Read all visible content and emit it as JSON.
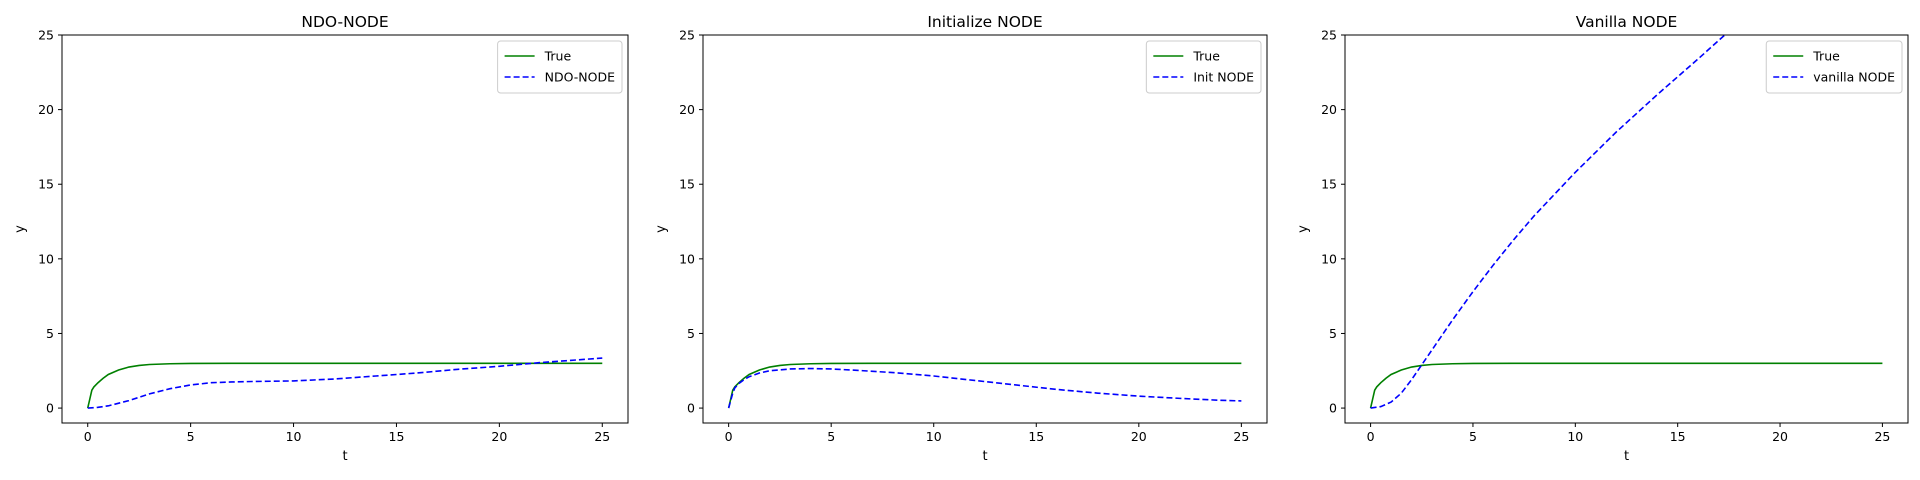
{
  "chart_data": [
    {
      "type": "line",
      "title": "NDO-NODE",
      "xlabel": "t",
      "ylabel": "y",
      "xlim": [
        -1.25,
        26.25
      ],
      "ylim": [
        -1,
        25
      ],
      "xticks": [
        0,
        5,
        10,
        15,
        20,
        25
      ],
      "yticks": [
        0,
        5,
        10,
        15,
        20,
        25
      ],
      "grid": false,
      "legend_position": "top-right",
      "series": [
        {
          "name": "True",
          "color": "#008000",
          "style": "solid",
          "x": [
            0,
            0.1,
            0.2,
            0.3,
            0.5,
            0.75,
            1,
            1.5,
            2,
            2.5,
            3,
            4,
            5,
            7,
            10,
            15,
            20,
            25
          ],
          "y": [
            0,
            0.6,
            1.2,
            1.42,
            1.7,
            2.0,
            2.25,
            2.55,
            2.75,
            2.86,
            2.92,
            2.97,
            2.99,
            3.0,
            3.0,
            3.0,
            3.0,
            3.0
          ]
        },
        {
          "name": "NDO-NODE",
          "color": "#0000ff",
          "style": "dashed",
          "x": [
            0,
            0.5,
            1,
            2,
            3,
            4,
            5,
            6,
            7,
            8,
            10,
            12,
            14,
            16,
            18,
            20,
            22,
            24,
            25
          ],
          "y": [
            0,
            0.05,
            0.15,
            0.5,
            0.95,
            1.3,
            1.55,
            1.7,
            1.75,
            1.78,
            1.82,
            1.95,
            2.15,
            2.35,
            2.6,
            2.8,
            3.05,
            3.25,
            3.35
          ]
        }
      ]
    },
    {
      "type": "line",
      "title": "Initialize NODE",
      "xlabel": "t",
      "ylabel": "y",
      "xlim": [
        -1.25,
        26.25
      ],
      "ylim": [
        -1,
        25
      ],
      "xticks": [
        0,
        5,
        10,
        15,
        20,
        25
      ],
      "yticks": [
        0,
        5,
        10,
        15,
        20,
        25
      ],
      "grid": false,
      "legend_position": "top-right",
      "series": [
        {
          "name": "True",
          "color": "#008000",
          "style": "solid",
          "x": [
            0,
            0.1,
            0.2,
            0.3,
            0.5,
            0.75,
            1,
            1.5,
            2,
            2.5,
            3,
            4,
            5,
            7,
            10,
            15,
            20,
            25
          ],
          "y": [
            0,
            0.6,
            1.2,
            1.42,
            1.7,
            2.0,
            2.25,
            2.55,
            2.75,
            2.86,
            2.92,
            2.97,
            2.99,
            3.0,
            3.0,
            3.0,
            3.0,
            3.0
          ]
        },
        {
          "name": "Init NODE",
          "color": "#0000ff",
          "style": "dashed",
          "x": [
            0,
            0.1,
            0.2,
            0.3,
            0.5,
            0.75,
            1,
            1.5,
            2,
            3,
            4,
            5,
            6,
            8,
            10,
            12,
            14,
            16,
            18,
            20,
            22,
            24,
            25
          ],
          "y": [
            0,
            0.5,
            1.0,
            1.35,
            1.65,
            1.9,
            2.1,
            2.35,
            2.5,
            2.62,
            2.65,
            2.62,
            2.55,
            2.38,
            2.15,
            1.85,
            1.55,
            1.25,
            1.0,
            0.8,
            0.65,
            0.52,
            0.48
          ]
        }
      ]
    },
    {
      "type": "line",
      "title": "Vanilla NODE",
      "xlabel": "t",
      "ylabel": "y",
      "xlim": [
        -1.25,
        26.25
      ],
      "ylim": [
        -1,
        25
      ],
      "xticks": [
        0,
        5,
        10,
        15,
        20,
        25
      ],
      "yticks": [
        0,
        5,
        10,
        15,
        20,
        25
      ],
      "grid": false,
      "legend_position": "top-right",
      "series": [
        {
          "name": "True",
          "color": "#008000",
          "style": "solid",
          "x": [
            0,
            0.1,
            0.2,
            0.3,
            0.5,
            0.75,
            1,
            1.5,
            2,
            2.5,
            3,
            4,
            5,
            7,
            10,
            15,
            20,
            25
          ],
          "y": [
            0,
            0.6,
            1.2,
            1.42,
            1.7,
            2.0,
            2.25,
            2.55,
            2.75,
            2.86,
            2.92,
            2.97,
            2.99,
            3.0,
            3.0,
            3.0,
            3.0,
            3.0
          ]
        },
        {
          "name": "vanilla NODE",
          "color": "#0000ff",
          "style": "dashed",
          "x": [
            0,
            0.5,
            1,
            1.5,
            2,
            2.5,
            3,
            4,
            5,
            6,
            7,
            8,
            10,
            12,
            14,
            16,
            17.3
          ],
          "y": [
            0,
            0.1,
            0.4,
            1.0,
            1.9,
            2.9,
            3.9,
            5.9,
            7.8,
            9.6,
            11.3,
            12.9,
            15.8,
            18.5,
            21.0,
            23.4,
            25.0
          ]
        }
      ]
    }
  ]
}
